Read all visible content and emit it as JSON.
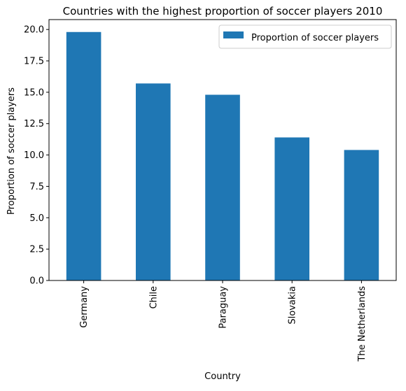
{
  "chart_data": {
    "type": "bar",
    "title": "Countries with the highest proportion of soccer players 2010",
    "xlabel": "Country",
    "ylabel": "Proportion of soccer players",
    "categories": [
      "Germany",
      "Chile",
      "Paraguay",
      "Slovakia",
      "The Netherlands"
    ],
    "series": [
      {
        "name": "Proportion of soccer players",
        "values": [
          19.8,
          15.7,
          14.8,
          11.4,
          10.4
        ],
        "color": "#1f77b4"
      }
    ],
    "ylim": [
      0,
      20.79
    ],
    "yticks": [
      "0.0",
      "2.5",
      "5.0",
      "7.5",
      "10.0",
      "12.5",
      "15.0",
      "17.5",
      "20.0"
    ],
    "grid": false,
    "legend_position": "top-right"
  }
}
